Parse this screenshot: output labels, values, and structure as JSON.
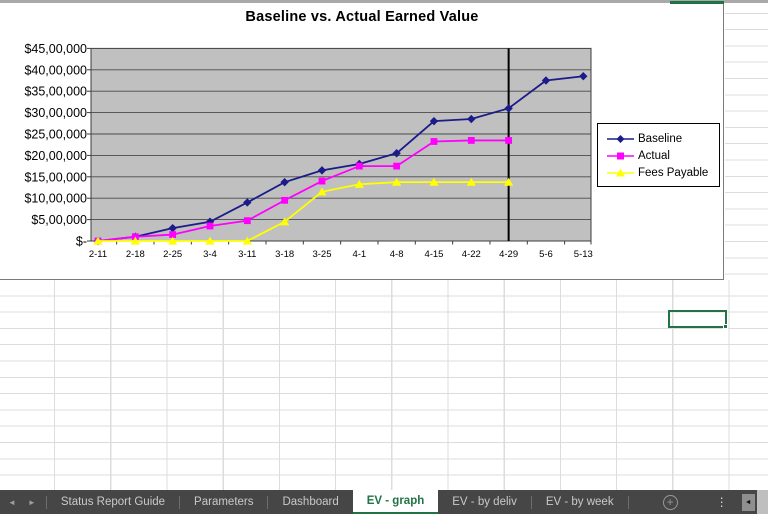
{
  "chart_data": {
    "type": "line",
    "title": "Baseline vs. Actual Earned Value",
    "categories": [
      "2-11",
      "2-18",
      "2-25",
      "3-4",
      "3-11",
      "3-18",
      "3-25",
      "4-1",
      "4-8",
      "4-15",
      "4-22",
      "4-29",
      "5-6",
      "5-13"
    ],
    "series": [
      {
        "name": "Baseline",
        "color": "#1b1b8a",
        "marker": "diamond",
        "values": [
          0,
          100000,
          300000,
          450000,
          900000,
          1375000,
          1650000,
          1800000,
          2050000,
          2800000,
          2850000,
          3100000,
          3750000,
          3850000
        ]
      },
      {
        "name": "Actual",
        "color": "#FF00FF",
        "marker": "square",
        "values": [
          0,
          100000,
          150000,
          350000,
          475000,
          950000,
          1400000,
          1750000,
          1750000,
          2325000,
          2350000,
          2350000,
          null,
          null
        ]
      },
      {
        "name": "Fees Payable",
        "color": "#FFFF00",
        "marker": "triangle",
        "values": [
          0,
          0,
          0,
          0,
          0,
          450000,
          1150000,
          1325000,
          1375000,
          1375000,
          1375000,
          1375000,
          null,
          null
        ]
      }
    ],
    "y_tick_labels": [
      "$-",
      "$5,00,000",
      "$10,00,000",
      "$15,00,000",
      "$20,00,000",
      "$25,00,000",
      "$30,00,000",
      "$35,00,000",
      "$40,00,000",
      "$45,00,000"
    ],
    "ylim": [
      0,
      4500000
    ],
    "y_step": 500000,
    "status_line_category": "4-29",
    "grid": true,
    "legend_position": "right",
    "plot_bg": "#C0C0C0"
  },
  "sheet_tabs": {
    "tabs": [
      {
        "label": "Status Report Guide",
        "active": false
      },
      {
        "label": "Parameters",
        "active": false
      },
      {
        "label": "Dashboard",
        "active": false
      },
      {
        "label": "EV - graph",
        "active": true
      },
      {
        "label": "EV - by deliv",
        "active": false
      },
      {
        "label": "EV - by week",
        "active": false
      }
    ]
  },
  "icons": {
    "nav_left": "◄",
    "nav_right": "►",
    "add_sheet": "+",
    "more": "⋮",
    "scroll_left": "◄"
  },
  "colors": {
    "excel_green": "#217346",
    "plot_background": "#C0C0C0",
    "gridline": "#4a4a4a"
  }
}
